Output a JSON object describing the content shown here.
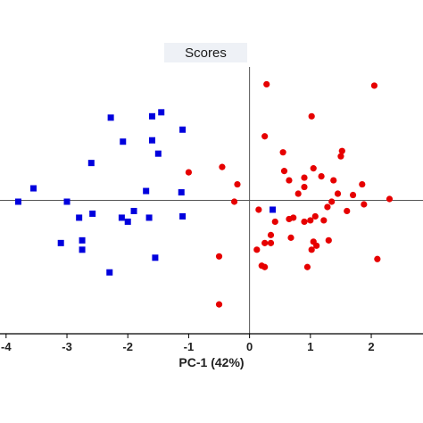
{
  "chart_data": {
    "type": "scatter",
    "title": "Scores",
    "xlabel": "PC-1 (42%)",
    "ylabel": "",
    "xlim": [
      -4.1,
      2.85
    ],
    "ylim": [
      -1.0,
      1.0
    ],
    "xticks": [
      -4,
      -3,
      -2,
      -1,
      0,
      1,
      2
    ],
    "xtick_labels": [
      "-4",
      "-3",
      "-2",
      "-1",
      "0",
      "1",
      "2"
    ],
    "grid": false,
    "legend": "none",
    "series": [
      {
        "marker": "square",
        "color": "#0000dd",
        "points": [
          [
            -2.28,
            0.62
          ],
          [
            -2.08,
            0.44
          ],
          [
            -1.6,
            0.63
          ],
          [
            -1.45,
            0.66
          ],
          [
            -1.1,
            0.53
          ],
          [
            -1.6,
            0.45
          ],
          [
            -1.5,
            0.35
          ],
          [
            -2.6,
            0.28
          ],
          [
            -3.55,
            0.09
          ],
          [
            -3.8,
            -0.01
          ],
          [
            -3.0,
            -0.01
          ],
          [
            -1.7,
            0.07
          ],
          [
            -1.12,
            0.06
          ],
          [
            -2.58,
            -0.1
          ],
          [
            -2.8,
            -0.13
          ],
          [
            -2.1,
            -0.13
          ],
          [
            -2.0,
            -0.16
          ],
          [
            -1.9,
            -0.08
          ],
          [
            -1.65,
            -0.13
          ],
          [
            -1.1,
            -0.12
          ],
          [
            -3.1,
            -0.32
          ],
          [
            -2.75,
            -0.3
          ],
          [
            -2.75,
            -0.37
          ],
          [
            -2.3,
            -0.54
          ],
          [
            -1.55,
            -0.43
          ],
          [
            0.38,
            -0.07
          ]
        ]
      },
      {
        "marker": "circle",
        "color": "#e60000",
        "points": [
          [
            0.28,
            0.87
          ],
          [
            2.05,
            0.86
          ],
          [
            1.02,
            0.63
          ],
          [
            0.25,
            0.48
          ],
          [
            0.55,
            0.36
          ],
          [
            1.52,
            0.37
          ],
          [
            1.5,
            0.33
          ],
          [
            0.57,
            0.22
          ],
          [
            -1.0,
            0.21
          ],
          [
            -0.45,
            0.25
          ],
          [
            1.05,
            0.24
          ],
          [
            1.18,
            0.18
          ],
          [
            0.9,
            0.17
          ],
          [
            0.65,
            0.15
          ],
          [
            -0.2,
            0.12
          ],
          [
            1.38,
            0.15
          ],
          [
            1.85,
            0.12
          ],
          [
            0.9,
            0.1
          ],
          [
            1.45,
            0.05
          ],
          [
            0.8,
            0.05
          ],
          [
            1.7,
            0.04
          ],
          [
            2.3,
            0.01
          ],
          [
            -0.25,
            -0.01
          ],
          [
            1.35,
            -0.01
          ],
          [
            1.88,
            -0.03
          ],
          [
            1.28,
            -0.05
          ],
          [
            0.15,
            -0.07
          ],
          [
            1.6,
            -0.08
          ],
          [
            1.08,
            -0.12
          ],
          [
            0.72,
            -0.13
          ],
          [
            0.65,
            -0.14
          ],
          [
            1.22,
            -0.15
          ],
          [
            1.0,
            -0.15
          ],
          [
            0.42,
            -0.16
          ],
          [
            0.9,
            -0.16
          ],
          [
            0.35,
            -0.26
          ],
          [
            0.68,
            -0.28
          ],
          [
            1.3,
            -0.3
          ],
          [
            0.25,
            -0.32
          ],
          [
            1.05,
            -0.31
          ],
          [
            0.35,
            -0.32
          ],
          [
            1.02,
            -0.37
          ],
          [
            0.12,
            -0.37
          ],
          [
            1.1,
            -0.34
          ],
          [
            -0.5,
            -0.42
          ],
          [
            0.2,
            -0.49
          ],
          [
            0.25,
            -0.5
          ],
          [
            2.1,
            -0.44
          ],
          [
            0.95,
            -0.5
          ],
          [
            -0.5,
            -0.78
          ]
        ]
      }
    ]
  }
}
